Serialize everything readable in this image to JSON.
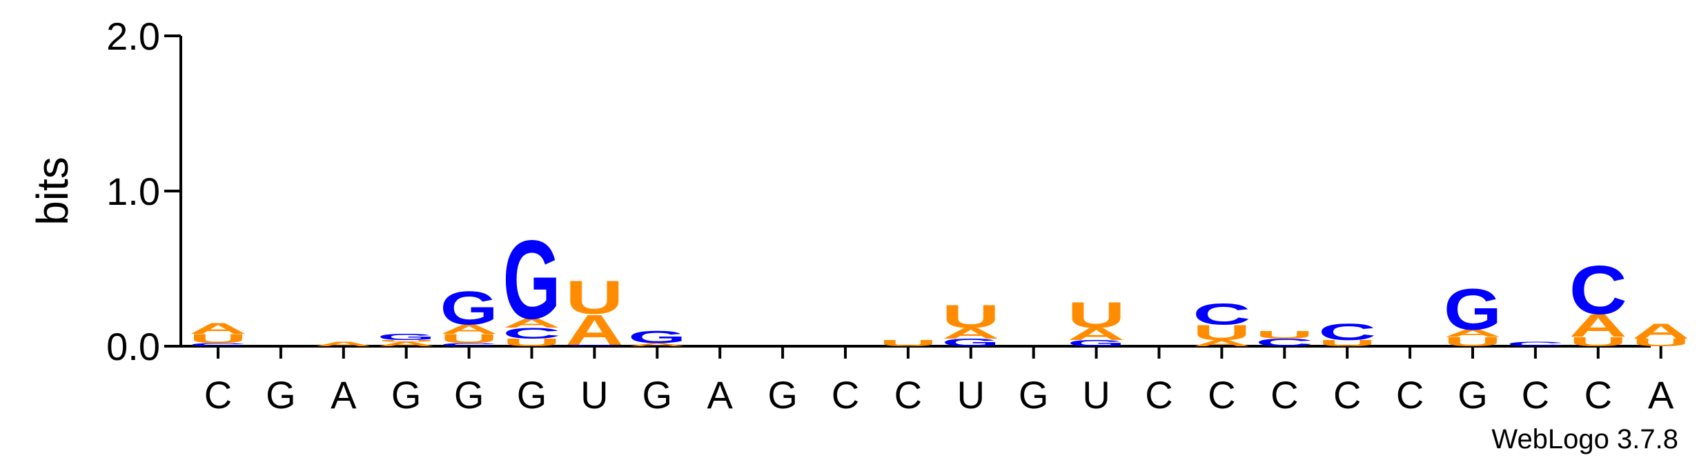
{
  "chart_data": {
    "type": "sequence-logo",
    "ylabel": "bits",
    "ylim": [
      0,
      2.0
    ],
    "yticks": [
      "0.0",
      "1.0",
      "2.0"
    ],
    "credit": "WebLogo 3.7.8",
    "colors": {
      "A": "#ff8c00",
      "U": "#ff8c00",
      "G": "#0000ff",
      "C": "#0000ff"
    },
    "positions": [
      {
        "label": "C",
        "stack": [
          [
            "C",
            0.02
          ],
          [
            "U",
            0.06
          ],
          [
            "A",
            0.07
          ]
        ]
      },
      {
        "label": "G",
        "stack": []
      },
      {
        "label": "A",
        "stack": [
          [
            "A",
            0.03
          ]
        ]
      },
      {
        "label": "G",
        "stack": [
          [
            "A",
            0.03
          ],
          [
            "U",
            0.01
          ],
          [
            "G",
            0.04
          ]
        ]
      },
      {
        "label": "G",
        "stack": [
          [
            "C",
            0.02
          ],
          [
            "U",
            0.06
          ],
          [
            "A",
            0.06
          ],
          [
            "G",
            0.22
          ]
        ]
      },
      {
        "label": "G",
        "stack": [
          [
            "U",
            0.05
          ],
          [
            "C",
            0.07
          ],
          [
            "A",
            0.06
          ],
          [
            "G",
            0.52
          ]
        ]
      },
      {
        "label": "U",
        "stack": [
          [
            "G",
            0.01
          ],
          [
            "A",
            0.2
          ],
          [
            "U",
            0.22
          ]
        ]
      },
      {
        "label": "G",
        "stack": [
          [
            "A",
            0.02
          ],
          [
            "G",
            0.08
          ]
        ]
      },
      {
        "label": "A",
        "stack": []
      },
      {
        "label": "G",
        "stack": []
      },
      {
        "label": "C",
        "stack": []
      },
      {
        "label": "C",
        "stack": [
          [
            "U",
            0.04
          ]
        ]
      },
      {
        "label": "U",
        "stack": [
          [
            "G",
            0.05
          ],
          [
            "A",
            0.07
          ],
          [
            "U",
            0.15
          ]
        ]
      },
      {
        "label": "G",
        "stack": []
      },
      {
        "label": "U",
        "stack": [
          [
            "G",
            0.04
          ],
          [
            "A",
            0.08
          ],
          [
            "U",
            0.17
          ]
        ]
      },
      {
        "label": "C",
        "stack": []
      },
      {
        "label": "C",
        "stack": [
          [
            "A",
            0.04
          ],
          [
            "U",
            0.1
          ],
          [
            "C",
            0.14
          ]
        ]
      },
      {
        "label": "C",
        "stack": [
          [
            "C",
            0.05
          ],
          [
            "U",
            0.05
          ]
        ]
      },
      {
        "label": "C",
        "stack": [
          [
            "U",
            0.04
          ],
          [
            "C",
            0.11
          ]
        ]
      },
      {
        "label": "C",
        "stack": []
      },
      {
        "label": "G",
        "stack": [
          [
            "U",
            0.06
          ],
          [
            "A",
            0.05
          ],
          [
            "G",
            0.27
          ]
        ]
      },
      {
        "label": "C",
        "stack": [
          [
            "C",
            0.03
          ]
        ]
      },
      {
        "label": "C",
        "stack": [
          [
            "U",
            0.06
          ],
          [
            "A",
            0.15
          ],
          [
            "C",
            0.32
          ]
        ]
      },
      {
        "label": "A",
        "stack": [
          [
            "U",
            0.05
          ],
          [
            "A",
            0.1
          ]
        ]
      }
    ]
  }
}
